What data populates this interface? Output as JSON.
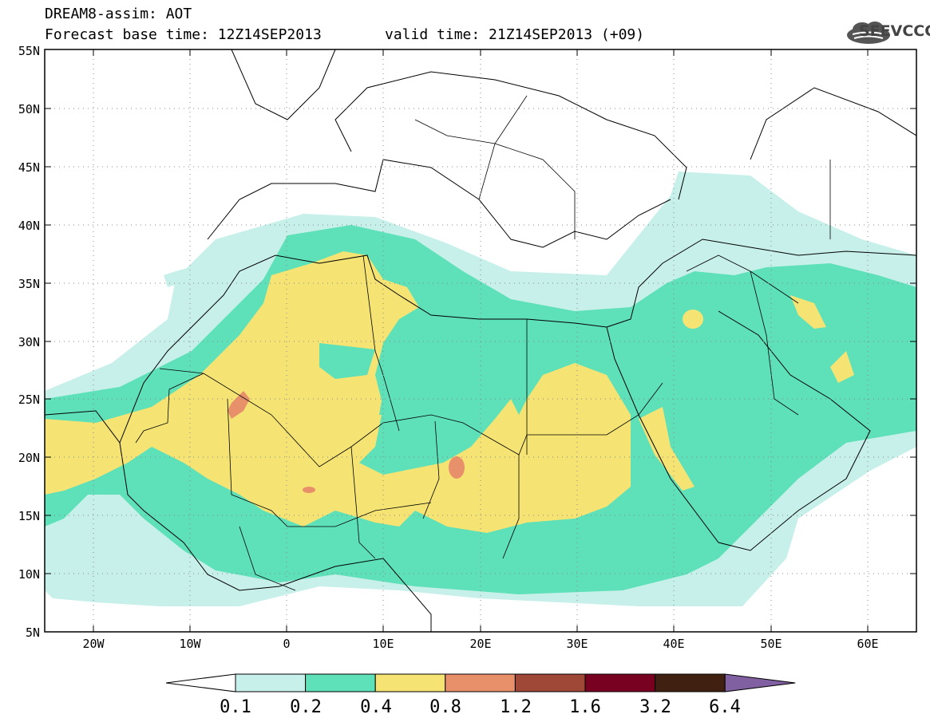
{
  "header": {
    "line1": "DREAM8-assim: AOT",
    "line2a": "Forecast base time: 12Z14SEP2013",
    "line2b": "valid time: 21Z14SEP2013 (+09)"
  },
  "logo": {
    "text": "SEEVCCC",
    "icon": "cloud-logo-icon"
  },
  "map": {
    "lon_range": [
      -25,
      65
    ],
    "lat_range": [
      5,
      55
    ],
    "lat_ticks": [
      "5N",
      "10N",
      "15N",
      "20N",
      "25N",
      "30N",
      "35N",
      "40N",
      "45N",
      "50N",
      "55N"
    ],
    "lon_ticks": [
      "20W",
      "10W",
      "0",
      "10E",
      "20E",
      "30E",
      "40E",
      "50E",
      "60E"
    ],
    "grid": "dotted"
  },
  "colorbar": {
    "labels": [
      "0.1",
      "0.2",
      "0.4",
      "0.8",
      "1.2",
      "1.6",
      "3.2",
      "6.4"
    ],
    "colors": [
      "#c8f0ea",
      "#5ee0b8",
      "#f5e474",
      "#e8906a",
      "#a04838",
      "#780020",
      "#402010",
      "#8060a0"
    ]
  }
}
